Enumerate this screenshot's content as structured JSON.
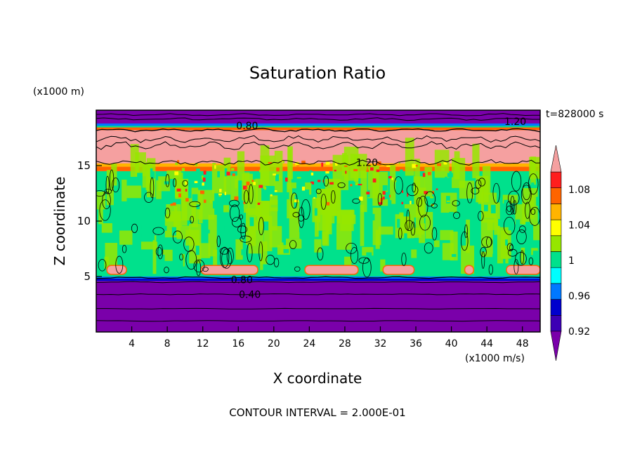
{
  "chart_data": {
    "type": "heatmap",
    "title": "Saturation Ratio",
    "xlabel": "X coordinate",
    "ylabel": "Z coordinate",
    "x_unit": "(x1000 m/s)",
    "y_unit": "(x1000 m)",
    "time_label": "t=828000 s",
    "contour_interval_label": "CONTOUR INTERVAL = 2.000E-01",
    "xlim": [
      0,
      50
    ],
    "ylim": [
      0,
      20
    ],
    "x_ticks": [
      4,
      8,
      12,
      16,
      20,
      24,
      28,
      32,
      36,
      40,
      44,
      48
    ],
    "y_ticks": [
      5,
      10,
      15
    ],
    "contour_labels": [
      {
        "text": "0.80",
        "x": 17,
        "z": 18.6
      },
      {
        "text": "1.20",
        "x": 47.2,
        "z": 19.0
      },
      {
        "text": "1.20",
        "x": 30.5,
        "z": 15.3
      },
      {
        "text": "0.80",
        "x": 16.4,
        "z": 4.7
      },
      {
        "text": "0.40",
        "x": 17.3,
        "z": 3.4
      }
    ],
    "colorbar": {
      "levels": [
        0.92,
        0.94,
        0.96,
        0.98,
        1.0,
        1.02,
        1.04,
        1.06,
        1.08,
        1.1
      ],
      "tick_labels": [
        "0.92",
        "0.96",
        "1",
        "1.04",
        "1.08"
      ],
      "colors": [
        "#7a00aa",
        "#3c00b4",
        "#0000cd",
        "#0078ff",
        "#00ffff",
        "#00e18c",
        "#96e600",
        "#ffff00",
        "#ffb400",
        "#ff6400",
        "#ff1e1e",
        "#f5a0a0"
      ],
      "extend": "both"
    },
    "layers": [
      {
        "z_range": [
          0,
          4.6
        ],
        "value": "below 0.92",
        "color": "#7a00aa"
      },
      {
        "z_range": [
          4.6,
          5.0
        ],
        "value": "0.92-0.96",
        "color": "#0000cd"
      },
      {
        "z_range": [
          5.0,
          14.5
        ],
        "value": "0.98-1.02",
        "color": "#00e18c"
      },
      {
        "z_range": [
          14.5,
          18.2
        ],
        "value": "above 1.10",
        "color": "#f5a0a0"
      },
      {
        "z_range": [
          18.2,
          20
        ],
        "value": "below 0.92",
        "color": "#7a00aa"
      }
    ],
    "grid": false
  }
}
